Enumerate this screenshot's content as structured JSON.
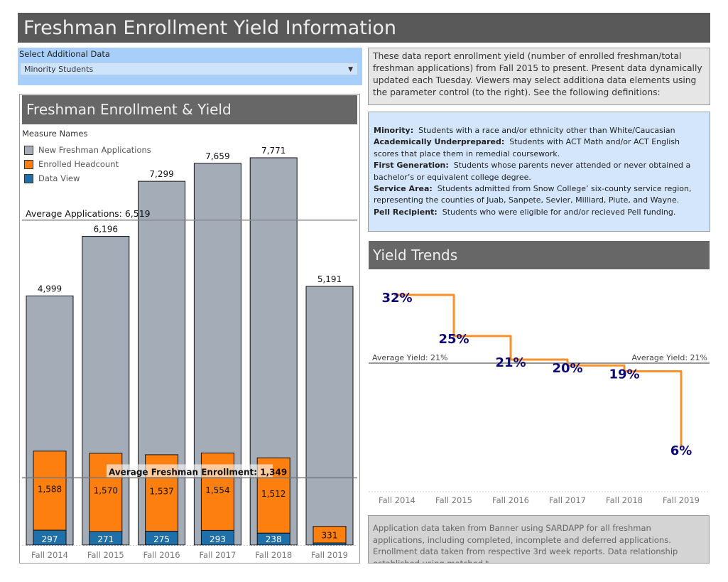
{
  "title": "Freshman Enrollment Yield Information",
  "parameter": {
    "label": "Select Additional Data",
    "selected": "Minority Students"
  },
  "description": "These data report enrollment yield (number of enrolled freshman/total freshman applications) from Fall 2015 to present.  Present data dynamically updated each Tuesday.  Viewers may select additiona data elements using the parameter control (to the right).  See the following definitions:",
  "definitions": [
    {
      "term": "Minority:",
      "text": "Students with a race and/or ethnicity other than White/Caucasian"
    },
    {
      "term": "Academically Underprepared:",
      "text": "Students with ACT Math and/or ACT English scores that place them in remedial coursework."
    },
    {
      "term": "First Generation:",
      "text": "Students whose parents never attended or never obtained a bachelor’s or equivalent college degree."
    },
    {
      "term": "Service Area:",
      "text": "Students admitted from Snow College’ six-county service region, representing the counties of Juab, Sanpete, Sevier, Milliard, Piute, and Wayne."
    },
    {
      "term": "Pell Recipient:",
      "text": "Students who were eligible for and/or recieved Pell funding."
    }
  ],
  "footer": "Application data taken from Banner using SARDAPP for all freshman applications, including completed, incomplete and deferred applications.  Ernollment data taken from respective 3rd week reports.  Data relationship established using matched t..",
  "chart_data": [
    {
      "type": "bar",
      "title": "Freshman Enrollment & Yield",
      "legend_title": "Measure Names",
      "legend_position": "top-left",
      "categories": [
        "Fall 2014",
        "Fall 2015",
        "Fall 2016",
        "Fall 2017",
        "Fall 2018",
        "Fall 2019"
      ],
      "series": [
        {
          "name": "New Freshman Applications",
          "color": "#a3acb7",
          "values": [
            4999,
            6196,
            7299,
            7659,
            7771,
            5191
          ],
          "labels": [
            "4,999",
            "6,196",
            "7,299",
            "7,659",
            "7,771",
            "5,191"
          ]
        },
        {
          "name": "Enrolled Headcount",
          "color": "#fd7f0f",
          "values": [
            1588,
            1570,
            1537,
            1554,
            1512,
            331
          ],
          "labels": [
            "1,588",
            "1,570",
            "1,537",
            "1,554",
            "1,512",
            "331"
          ]
        },
        {
          "name": "Data View",
          "color": "#1f6fa8",
          "values": [
            297,
            271,
            275,
            293,
            238,
            null
          ],
          "labels": [
            "297",
            "271",
            "275",
            "293",
            "238",
            ""
          ]
        }
      ],
      "reference_lines": [
        {
          "label": "Average Applications:  6,519",
          "value": 6519
        },
        {
          "label": "Average Freshman Enrollment:  1,349",
          "value": 1349
        }
      ],
      "ylim": [
        0,
        7771
      ],
      "grid": false
    },
    {
      "type": "line",
      "title": "Yield Trends",
      "step": true,
      "color": "#f7912b",
      "label_color": "#0f0a7a",
      "categories": [
        "Fall 2014",
        "Fall 2015",
        "Fall 2016",
        "Fall 2017",
        "Fall 2018",
        "Fall 2019"
      ],
      "values": [
        32,
        25,
        21,
        20,
        19,
        6
      ],
      "labels": [
        "32%",
        "25%",
        "21%",
        "20%",
        "19%",
        "6%"
      ],
      "reference_line": {
        "label": "Average Yield:  21%",
        "value": 21
      },
      "grid": false
    }
  ]
}
